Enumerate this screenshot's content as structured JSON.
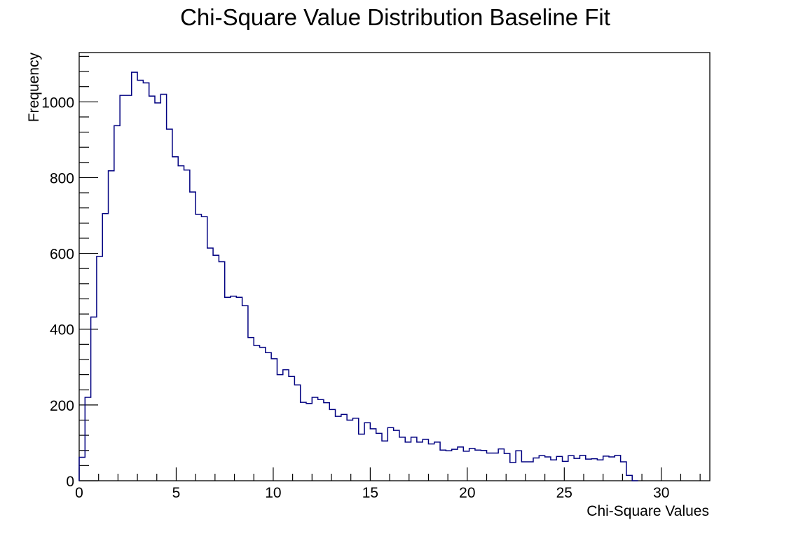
{
  "chart_data": {
    "type": "histogram",
    "title": "Chi-Square Value Distribution Baseline Fit",
    "xlabel": "Chi-Square Values",
    "ylabel": "Frequency",
    "xlim": [
      0,
      32.5
    ],
    "ylim": [
      0,
      1130
    ],
    "x_ticks": [
      "0",
      "5",
      "10",
      "15",
      "20",
      "25",
      "30"
    ],
    "y_ticks": [
      "0",
      "200",
      "400",
      "600",
      "800",
      "1000"
    ],
    "bin_width": 0.3,
    "bin_start": 0,
    "values": [
      62,
      220,
      432,
      592,
      705,
      818,
      937,
      1017,
      1017,
      1078,
      1057,
      1050,
      1015,
      997,
      1020,
      928,
      855,
      831,
      820,
      762,
      703,
      697,
      614,
      595,
      578,
      484,
      487,
      484,
      462,
      378,
      357,
      352,
      338,
      322,
      280,
      293,
      275,
      253,
      207,
      204,
      220,
      214,
      206,
      188,
      170,
      175,
      160,
      165,
      123,
      153,
      137,
      125,
      105,
      140,
      133,
      115,
      102,
      115,
      102,
      109,
      97,
      102,
      81,
      79,
      83,
      89,
      78,
      85,
      81,
      80,
      73,
      73,
      84,
      72,
      48,
      79,
      50,
      50,
      60,
      66,
      63,
      55,
      64,
      51,
      66,
      59,
      67,
      57,
      58,
      55,
      65,
      63,
      67,
      50,
      14,
      0
    ],
    "line_color": "#000080",
    "grid": false
  }
}
